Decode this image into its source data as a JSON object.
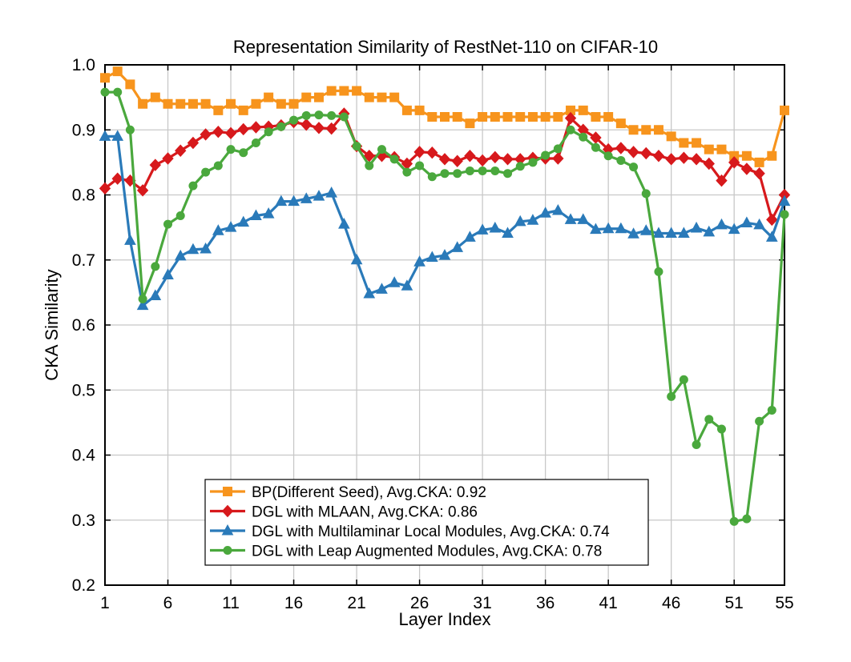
{
  "chart_data": {
    "type": "line",
    "title": "Representation Similarity of RestNet-110 on CIFAR-10",
    "xlabel": "Layer Index",
    "ylabel": "CKA Similarity",
    "xlim": [
      1,
      55
    ],
    "ylim": [
      0.2,
      1.0
    ],
    "xticks": [
      1,
      6,
      11,
      16,
      21,
      26,
      31,
      36,
      41,
      46,
      51,
      55
    ],
    "yticks": [
      0.2,
      0.3,
      0.4,
      0.5,
      0.6,
      0.7,
      0.8,
      0.9,
      1.0
    ],
    "ytick_labels": [
      "0.2",
      "0.3",
      "0.4",
      "0.5",
      "0.6",
      "0.7",
      "0.8",
      "0.9",
      "1.0"
    ],
    "grid": true,
    "legend_position": "bottom-center",
    "series": [
      {
        "name": "BP(Different Seed), Avg.CKA: 0.92",
        "color": "#f7941d",
        "marker": "square",
        "values": [
          0.98,
          0.99,
          0.97,
          0.94,
          0.95,
          0.94,
          0.94,
          0.94,
          0.94,
          0.93,
          0.94,
          0.93,
          0.94,
          0.95,
          0.94,
          0.94,
          0.95,
          0.95,
          0.96,
          0.96,
          0.96,
          0.95,
          0.95,
          0.95,
          0.93,
          0.93,
          0.92,
          0.92,
          0.92,
          0.91,
          0.92,
          0.92,
          0.92,
          0.92,
          0.92,
          0.92,
          0.92,
          0.93,
          0.93,
          0.92,
          0.92,
          0.91,
          0.9,
          0.9,
          0.9,
          0.89,
          0.88,
          0.88,
          0.87,
          0.87,
          0.86,
          0.86,
          0.85,
          0.86,
          0.93
        ]
      },
      {
        "name": "DGL with MLAAN, Avg.CKA: 0.86",
        "color": "#d7191c",
        "marker": "diamond",
        "values": [
          0.81,
          0.825,
          0.822,
          0.807,
          0.846,
          0.856,
          0.868,
          0.88,
          0.893,
          0.897,
          0.895,
          0.901,
          0.904,
          0.905,
          0.907,
          0.912,
          0.908,
          0.903,
          0.902,
          0.925,
          0.875,
          0.86,
          0.86,
          0.858,
          0.848,
          0.866,
          0.865,
          0.855,
          0.852,
          0.86,
          0.853,
          0.858,
          0.855,
          0.855,
          0.857,
          0.856,
          0.856,
          0.918,
          0.9,
          0.888,
          0.87,
          0.872,
          0.866,
          0.864,
          0.86,
          0.855,
          0.857,
          0.855,
          0.848,
          0.822,
          0.85,
          0.84,
          0.833,
          0.762,
          0.8
        ]
      },
      {
        "name": "DGL with Multilaminar Local Modules, Avg.CKA: 0.74",
        "color": "#2a7ab9",
        "marker": "triangle",
        "values": [
          0.89,
          0.89,
          0.73,
          0.63,
          0.645,
          0.677,
          0.706,
          0.716,
          0.717,
          0.745,
          0.75,
          0.758,
          0.768,
          0.771,
          0.79,
          0.79,
          0.794,
          0.798,
          0.803,
          0.755,
          0.7,
          0.648,
          0.655,
          0.665,
          0.66,
          0.697,
          0.704,
          0.707,
          0.719,
          0.735,
          0.746,
          0.749,
          0.741,
          0.759,
          0.761,
          0.772,
          0.776,
          0.762,
          0.762,
          0.747,
          0.748,
          0.748,
          0.74,
          0.745,
          0.741,
          0.741,
          0.741,
          0.749,
          0.743,
          0.754,
          0.747,
          0.757,
          0.754,
          0.735,
          0.79
        ]
      },
      {
        "name": "DGL with Leap Augmented Modules, Avg.CKA: 0.78",
        "color": "#4aa83d",
        "marker": "circle",
        "values": [
          0.958,
          0.958,
          0.9,
          0.64,
          0.69,
          0.755,
          0.768,
          0.814,
          0.835,
          0.845,
          0.87,
          0.865,
          0.88,
          0.897,
          0.905,
          0.915,
          0.922,
          0.923,
          0.922,
          0.92,
          0.875,
          0.845,
          0.87,
          0.855,
          0.835,
          0.845,
          0.828,
          0.833,
          0.833,
          0.837,
          0.837,
          0.837,
          0.833,
          0.844,
          0.85,
          0.861,
          0.871,
          0.9,
          0.889,
          0.873,
          0.86,
          0.853,
          0.843,
          0.802,
          0.682,
          0.49,
          0.516,
          0.416,
          0.455,
          0.44,
          0.298,
          0.302,
          0.452,
          0.469,
          0.77
        ]
      }
    ]
  }
}
